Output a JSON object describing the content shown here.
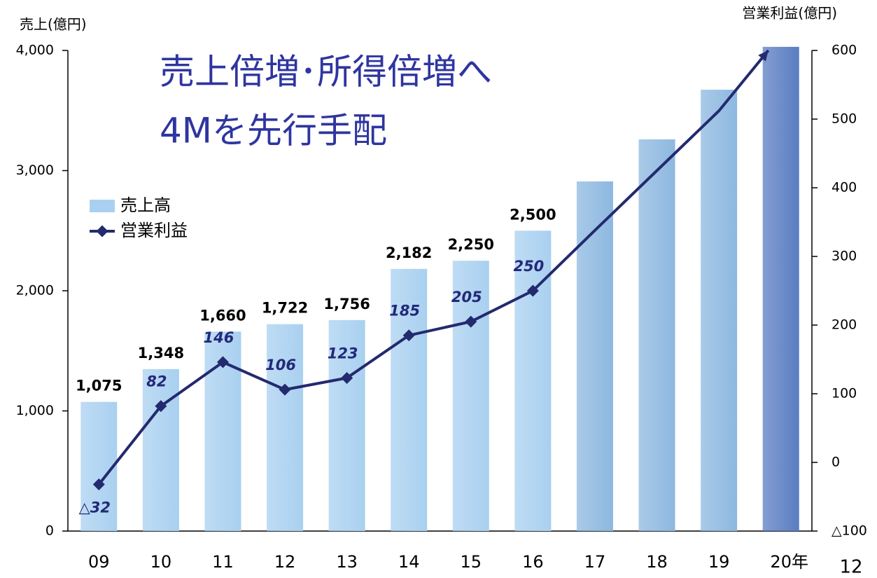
{
  "chart_data": {
    "type": "bar",
    "title": [
      "売上倍増･所得倍増へ",
      "4Mを先行手配"
    ],
    "y_label": "売上(億円)",
    "y2_label": "営業利益(億円)",
    "page_number": "12",
    "categories": [
      "09",
      "10",
      "11",
      "12",
      "13",
      "14",
      "15",
      "16",
      "17",
      "18",
      "19",
      "20年"
    ],
    "series": [
      {
        "name": "売上高",
        "type": "bar",
        "colors": [
          "#a9d0f0",
          "#a9d0f0",
          "#a9d0f0",
          "#a9d0f0",
          "#a9d0f0",
          "#a9d0f0",
          "#a9d0f0",
          "#a9d0f0",
          "#8db8e0",
          "#8db8e0",
          "#8db8e0",
          "#5a7dc2"
        ],
        "values": [
          1075,
          1348,
          1660,
          1722,
          1756,
          2182,
          2250,
          2500,
          2910,
          3260,
          3673,
          4030
        ],
        "value_labels": [
          "1,075",
          "1,348",
          "1,660",
          "1,722",
          "1,756",
          "2,182",
          "2,250",
          "2,500",
          null,
          null,
          null,
          null
        ]
      },
      {
        "name": "営業利益",
        "type": "line",
        "axis": "y2",
        "color": "#232a6e",
        "values": [
          -32,
          82,
          146,
          106,
          123,
          185,
          205,
          250,
          338,
          425,
          512,
          600
        ],
        "value_labels": [
          "△32",
          "82",
          "146",
          "106",
          "123",
          "185",
          "205",
          "250",
          null,
          null,
          null,
          null
        ]
      }
    ],
    "ylim": [
      0,
      4000
    ],
    "yticks": [
      0,
      {
        "value": 1000,
        "label": "1,000"
      },
      {
        "value": 2000,
        "label": "2,000"
      },
      {
        "value": 3000,
        "label": "3,000"
      },
      {
        "value": 4000,
        "label": "4,000"
      }
    ],
    "y2lim": [
      -100,
      600
    ],
    "y2ticks": [
      {
        "value": -100,
        "label": "△100"
      },
      0,
      100,
      200,
      300,
      400,
      500,
      600
    ]
  }
}
